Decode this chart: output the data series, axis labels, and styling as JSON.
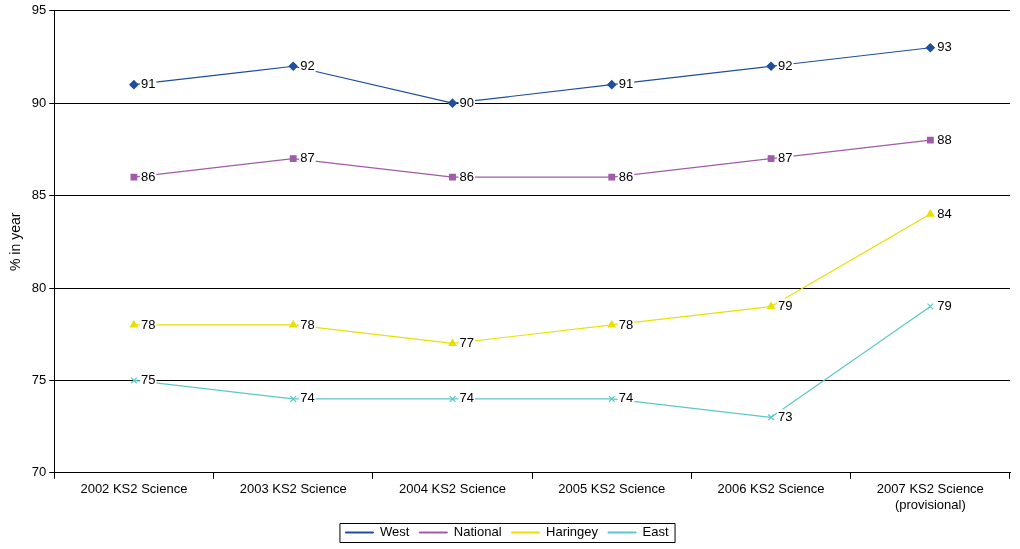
{
  "chart_data": {
    "type": "line",
    "ylabel": "% in year",
    "categories": [
      "2002 KS2 Science",
      "2003 KS2 Science",
      "2004 KS2 Science",
      "2005 KS2 Science",
      "2006 KS2 Science",
      "2007 KS2 Science (provisional)"
    ],
    "series": [
      {
        "name": "West",
        "color": "#1f4e9c",
        "marker": "diamond",
        "values": [
          91,
          92,
          90,
          91,
          92,
          93
        ]
      },
      {
        "name": "National",
        "color": "#a05ca8",
        "marker": "square",
        "values": [
          86,
          87,
          86,
          86,
          87,
          88
        ]
      },
      {
        "name": "Haringey",
        "color": "#e8e000",
        "marker": "triangle",
        "values": [
          78,
          78,
          77,
          78,
          79,
          84
        ]
      },
      {
        "name": "East",
        "color": "#5bc8c8",
        "marker": "cross",
        "values": [
          75,
          74,
          74,
          74,
          73,
          79
        ]
      }
    ],
    "ylim": [
      70,
      95
    ],
    "yticks": [
      70,
      75,
      80,
      85,
      90,
      95
    ],
    "grid": "y",
    "legend": "bottom",
    "data_labels": true,
    "line_style": "solid"
  }
}
